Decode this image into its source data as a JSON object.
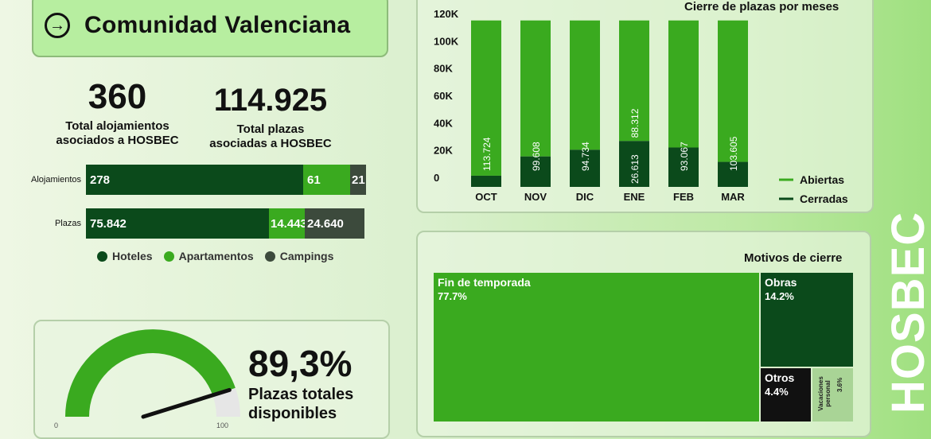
{
  "header": {
    "title": "Comunidad Valenciana",
    "icon": "arrow-right-circle-icon"
  },
  "kpis": [
    {
      "value": "360",
      "label_line1": "Total alojamientos",
      "label_line2": "asociados a HOSBEC"
    },
    {
      "value": "114.925",
      "label_line1": "Total plazas",
      "label_line2": "asociadas a HOSBEC"
    }
  ],
  "stacked": {
    "rows": [
      {
        "label": "Alojamientos",
        "values": [
          "278",
          "61",
          "21"
        ]
      },
      {
        "label": "Plazas",
        "values": [
          "75.842",
          "14.443",
          "24.640"
        ]
      }
    ],
    "legend": [
      "Hoteles",
      "Apartamentos",
      "Campings"
    ]
  },
  "gauge": {
    "value": "89,3%",
    "label_line1": "Plazas totales",
    "label_line2": "disponibles",
    "min": "0",
    "max": "100"
  },
  "colors": {
    "dark_green": "#0b4a1b",
    "green": "#3aaa1f",
    "gray_green": "#3c4a3c",
    "light_gray": "#e6e6e6"
  },
  "chart_data": [
    {
      "type": "bar",
      "title": "Cierre de plazas por meses",
      "categories": [
        "OCT",
        "NOV",
        "DIC",
        "ENE",
        "FEB",
        "MAR"
      ],
      "series": [
        {
          "name": "Cerradas",
          "values": [
            1201,
            15317,
            20191,
            26613,
            21858,
            11320
          ]
        },
        {
          "name": "Abiertas",
          "values": [
            113724,
            99608,
            94734,
            88312,
            93067,
            103605
          ]
        }
      ],
      "bar_labels": {
        "Abiertas": [
          "113.724",
          "99.608",
          "94.734",
          "88.312",
          "93.067",
          "103.605"
        ],
        "Cerradas": [
          "",
          "",
          "",
          "26.613",
          "",
          ""
        ]
      },
      "yticks": [
        "0",
        "20K",
        "40K",
        "60K",
        "80K",
        "100K",
        "120K"
      ],
      "ylim": [
        0,
        120000
      ],
      "stacked": true,
      "legend_position": "right"
    },
    {
      "type": "treemap",
      "title": "Motivos de cierre",
      "items": [
        {
          "label": "Fin de temporada",
          "value": 77.7,
          "pct": "77.7%"
        },
        {
          "label": "Obras",
          "value": 14.2,
          "pct": "14.2%"
        },
        {
          "label": "Otros",
          "value": 4.4,
          "pct": "4.4%"
        },
        {
          "label": "Vacaciones personal",
          "value": 3.6,
          "pct": "3.6%"
        }
      ]
    }
  ],
  "brand": {
    "name": "HOSBEC"
  }
}
